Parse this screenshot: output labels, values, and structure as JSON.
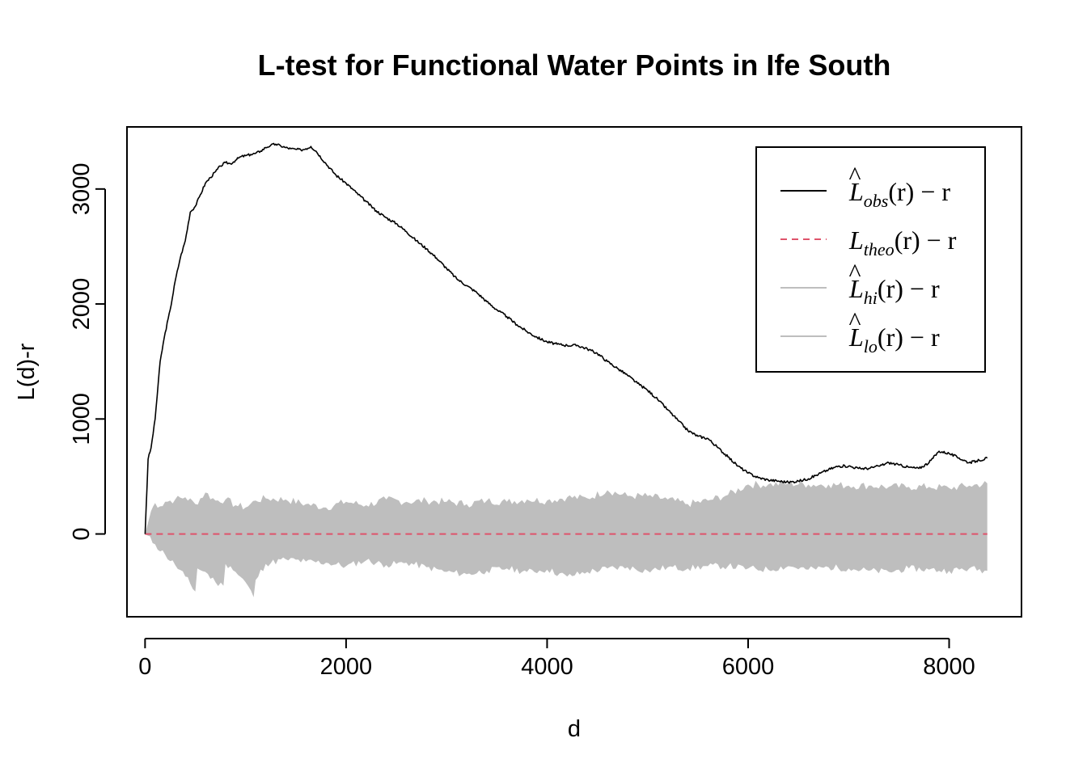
{
  "chart_data": {
    "type": "line",
    "title": "L-test for Functional Water Points in Ife South",
    "xlabel": "d",
    "ylabel": "L(d)-r",
    "xlim": [
      -180,
      8720
    ],
    "ylim": [
      -720,
      3540
    ],
    "x_ticks": [
      0,
      2000,
      4000,
      6000,
      8000
    ],
    "y_ticks": [
      0,
      1000,
      2000,
      3000
    ],
    "grid": false,
    "legend_position": "top-right",
    "legend": [
      {
        "main": "L",
        "hat": true,
        "sub": "obs",
        "tail": "(r) − r",
        "style": "solid",
        "color": "#000000"
      },
      {
        "main": "L",
        "hat": false,
        "sub": "theo",
        "tail": "(r) − r",
        "style": "dashed",
        "color": "#DF536B"
      },
      {
        "main": "L",
        "hat": true,
        "sub": "hi",
        "tail": "(r) − r",
        "style": "solid",
        "color": "#BEBEBE"
      },
      {
        "main": "L",
        "hat": true,
        "sub": "lo",
        "tail": "(r) − r",
        "style": "solid",
        "color": "#BEBEBE"
      }
    ],
    "series": [
      {
        "name": "obs",
        "color": "#000000",
        "x": [
          0,
          30,
          60,
          100,
          150,
          200,
          250,
          300,
          350,
          400,
          450,
          500,
          550,
          600,
          650,
          700,
          750,
          800,
          850,
          900,
          950,
          1000,
          1050,
          1100,
          1150,
          1200,
          1250,
          1300,
          1350,
          1400,
          1450,
          1500,
          1550,
          1600,
          1650,
          1700,
          1800,
          1900,
          2000,
          2100,
          2200,
          2300,
          2400,
          2500,
          2600,
          2700,
          2800,
          2900,
          3000,
          3100,
          3200,
          3300,
          3400,
          3500,
          3600,
          3700,
          3800,
          3900,
          4000,
          4100,
          4200,
          4300,
          4400,
          4500,
          4600,
          4700,
          4800,
          4900,
          5000,
          5100,
          5200,
          5300,
          5400,
          5500,
          5600,
          5700,
          5800,
          5900,
          6000,
          6100,
          6200,
          6300,
          6400,
          6500,
          6600,
          6700,
          6800,
          6900,
          7000,
          7100,
          7200,
          7300,
          7400,
          7500,
          7600,
          7700,
          7800,
          7900,
          8000,
          8100,
          8200,
          8300,
          8380
        ],
        "values": [
          0,
          650,
          750,
          1000,
          1500,
          1750,
          1950,
          2200,
          2400,
          2550,
          2800,
          2850,
          2950,
          3050,
          3100,
          3150,
          3200,
          3230,
          3220,
          3250,
          3280,
          3290,
          3300,
          3310,
          3330,
          3360,
          3380,
          3390,
          3375,
          3360,
          3350,
          3345,
          3340,
          3350,
          3370,
          3330,
          3220,
          3120,
          3050,
          2970,
          2890,
          2810,
          2750,
          2700,
          2630,
          2550,
          2480,
          2400,
          2310,
          2220,
          2160,
          2100,
          2020,
          1950,
          1890,
          1820,
          1760,
          1710,
          1670,
          1650,
          1640,
          1640,
          1610,
          1570,
          1500,
          1440,
          1380,
          1310,
          1250,
          1170,
          1080,
          990,
          900,
          850,
          830,
          750,
          670,
          590,
          530,
          490,
          470,
          460,
          450,
          460,
          480,
          520,
          560,
          590,
          590,
          570,
          570,
          590,
          620,
          600,
          580,
          570,
          620,
          720,
          700,
          660,
          620,
          640,
          660
        ]
      },
      {
        "name": "theo",
        "color": "#DF536B",
        "x": [
          0,
          8380
        ],
        "values": [
          0,
          0
        ]
      },
      {
        "name": "hi",
        "color": "#BEBEBE",
        "x": [
          0,
          60,
          100,
          150,
          200,
          300,
          400,
          500,
          600,
          700,
          800,
          900,
          1000,
          1100,
          1200,
          1400,
          1600,
          1800,
          2000,
          2200,
          2400,
          2600,
          2800,
          3000,
          3200,
          3400,
          3600,
          3800,
          4000,
          4200,
          4400,
          4600,
          4800,
          5000,
          5200,
          5400,
          5600,
          5800,
          6000,
          6200,
          6400,
          6600,
          6800,
          7000,
          7200,
          7400,
          7600,
          7800,
          8000,
          8200,
          8380
        ],
        "values": [
          0,
          200,
          270,
          240,
          280,
          300,
          320,
          260,
          360,
          290,
          300,
          250,
          230,
          290,
          310,
          300,
          260,
          230,
          280,
          250,
          300,
          280,
          290,
          280,
          260,
          290,
          280,
          300,
          290,
          320,
          310,
          380,
          330,
          330,
          300,
          260,
          290,
          340,
          430,
          430,
          440,
          430,
          430,
          420,
          420,
          410,
          410,
          410,
          400,
          420,
          440
        ]
      },
      {
        "name": "lo",
        "color": "#BEBEBE",
        "x": [
          0,
          100,
          200,
          300,
          400,
          500,
          520,
          600,
          700,
          780,
          800,
          850,
          900,
          1000,
          1080,
          1100,
          1200,
          1400,
          1600,
          1800,
          2000,
          2200,
          2400,
          2600,
          2800,
          3000,
          3200,
          3400,
          3600,
          3800,
          4000,
          4200,
          4400,
          4600,
          4800,
          5000,
          5200,
          5400,
          5600,
          5800,
          6000,
          6200,
          6400,
          6600,
          6800,
          7000,
          7200,
          7400,
          7600,
          7800,
          8000,
          8200,
          8380
        ],
        "values": [
          0,
          -90,
          -180,
          -270,
          -370,
          -500,
          -300,
          -330,
          -420,
          -450,
          -260,
          -280,
          -330,
          -420,
          -550,
          -400,
          -260,
          -220,
          -240,
          -250,
          -280,
          -230,
          -270,
          -250,
          -290,
          -330,
          -350,
          -320,
          -300,
          -330,
          -310,
          -370,
          -330,
          -300,
          -290,
          -320,
          -290,
          -300,
          -280,
          -280,
          -300,
          -310,
          -280,
          -310,
          -290,
          -300,
          -320,
          -330,
          -300,
          -310,
          -320,
          -300,
          -320
        ]
      }
    ]
  }
}
